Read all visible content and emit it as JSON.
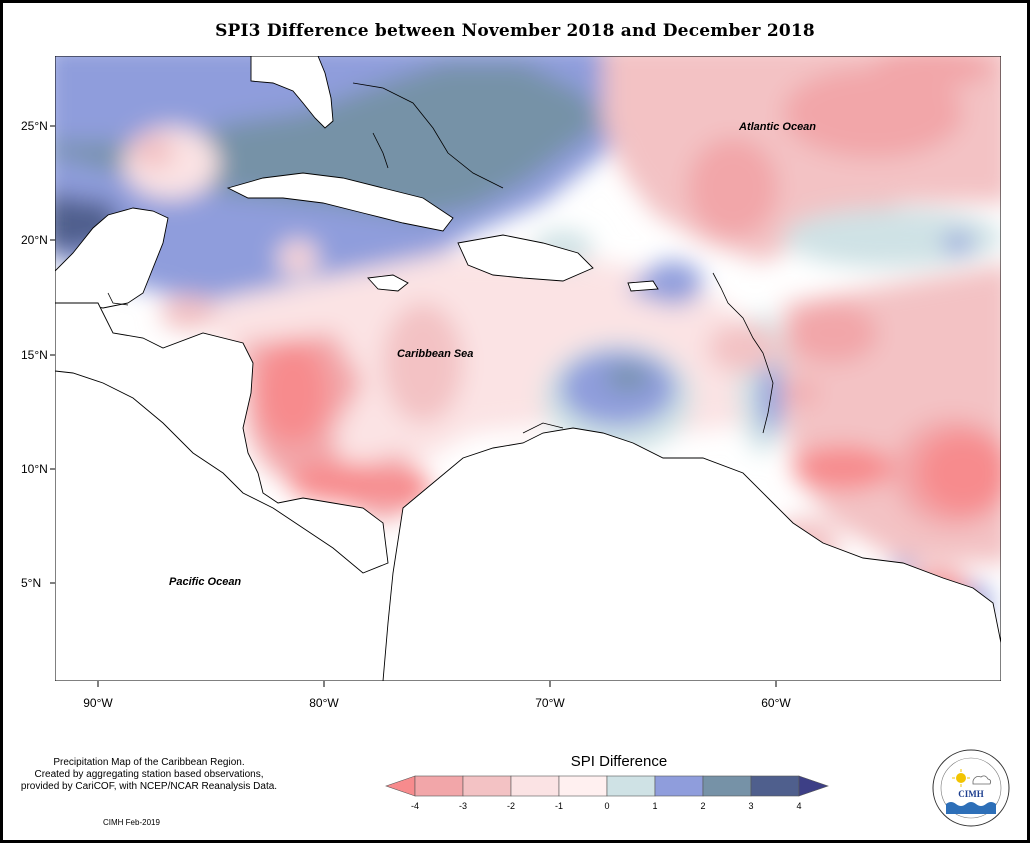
{
  "title": "SPI3 Difference between November 2018 and December 2018",
  "map": {
    "region": "Caribbean",
    "lon_range": [
      -92,
      -50
    ],
    "lat_range": [
      1,
      28
    ],
    "lat_ticks": [
      {
        "label": "25°N",
        "value": 25
      },
      {
        "label": "20°N",
        "value": 20
      },
      {
        "label": "15°N",
        "value": 15
      },
      {
        "label": "10°N",
        "value": 10
      },
      {
        "label": "5°N",
        "value": 5
      }
    ],
    "lon_ticks": [
      {
        "label": "90°W",
        "value": -90
      },
      {
        "label": "80°W",
        "value": -80
      },
      {
        "label": "70°W",
        "value": -70
      },
      {
        "label": "60°W",
        "value": -60
      }
    ],
    "places": {
      "atlantic": "Atlantic Ocean",
      "caribbean": "Caribbean Sea",
      "pacific": "Pacific Ocean"
    }
  },
  "caption": {
    "line1": "Precipitation Map of the Caribbean Region.",
    "line2": "Created by aggregating station based observations,",
    "line3": "provided by CariCOF, with NCEP/NCAR Reanalysis Data."
  },
  "credit": "CIMH Feb-2019",
  "legend": {
    "title": "SPI Difference",
    "ticks": [
      "-4",
      "-3",
      "-2",
      "-1",
      "0",
      "1",
      "2",
      "3",
      "4"
    ],
    "colors": [
      "#f78b8d",
      "#f2a6a9",
      "#f3c2c4",
      "#fbe3e4",
      "#fff0f0",
      "#cfe2e5",
      "#8f9ddc",
      "#7692a7",
      "#4f5f8d",
      "#3d3f86"
    ]
  },
  "logo": {
    "text": "CIMH",
    "ring_text": "Caribbean Institute for Meteorology and Hydrology"
  }
}
